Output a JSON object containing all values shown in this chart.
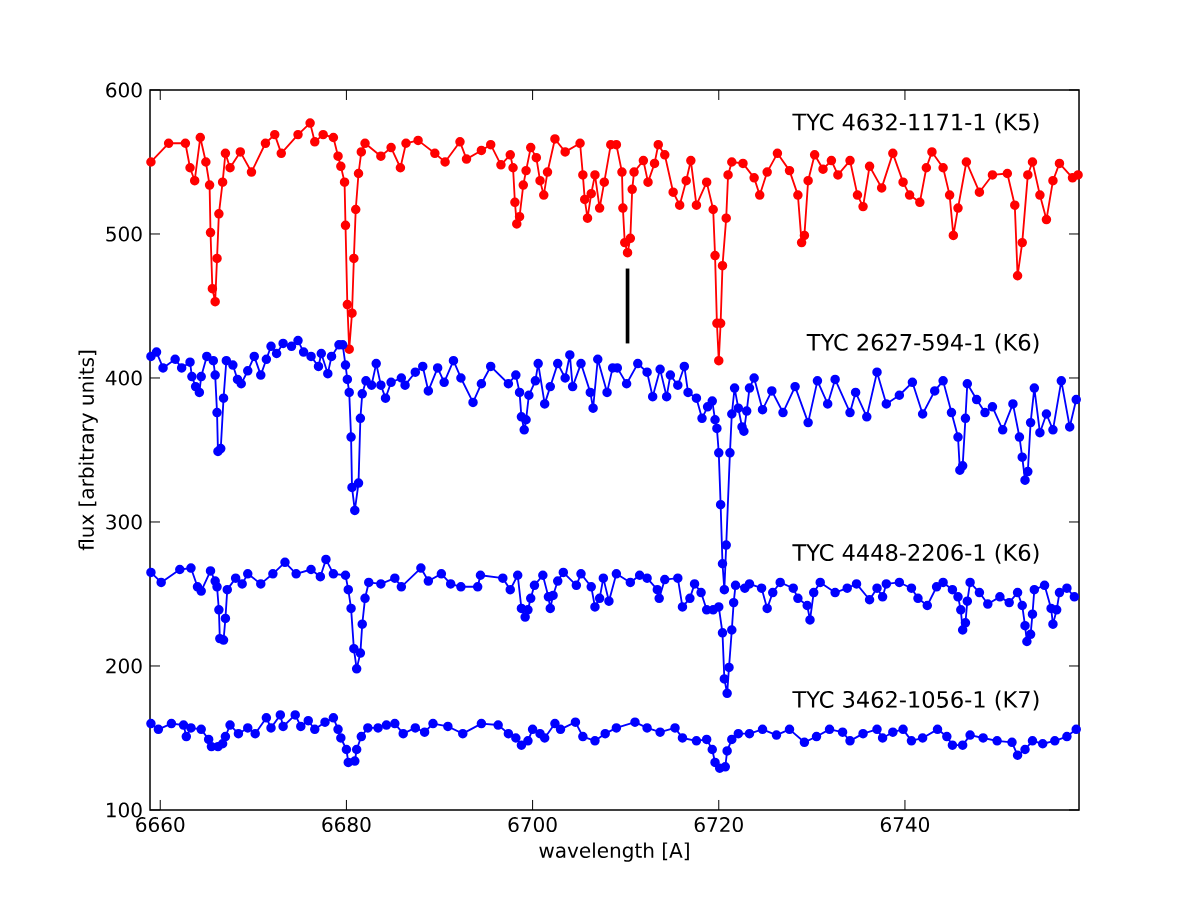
{
  "chart_data": {
    "type": "line",
    "xlabel": "wavelength [A]",
    "ylabel": "flux [arbitrary units]",
    "xlim": [
      6658.9,
      6758.7
    ],
    "ylim": [
      100,
      600
    ],
    "xticks": [
      6660,
      6680,
      6700,
      6720,
      6740
    ],
    "yticks": [
      100,
      200,
      300,
      400,
      500,
      600
    ],
    "marker": "circle",
    "line_style": "solid",
    "series": [
      {
        "name": "TYC 4632-1171-1 (K5)",
        "color": "#ff0000",
        "x": [
          6659.0,
          6660.9,
          6662.7,
          6663.2,
          6663.7,
          6664.3,
          6664.9,
          6665.3,
          6665.4,
          6665.6,
          6665.9,
          6666.1,
          6666.3,
          6666.7,
          6667.0,
          6667.5,
          6668.6,
          6669.8,
          6671.3,
          6672.3,
          6673.0,
          6674.8,
          6676.1,
          6676.6,
          6677.5,
          6678.6,
          6679.1,
          6679.4,
          6679.8,
          6679.9,
          6680.1,
          6680.3,
          6680.6,
          6680.8,
          6681.0,
          6681.3,
          6681.6,
          6682.0,
          6683.7,
          6684.8,
          6685.8,
          6686.4,
          6687.7,
          6689.5,
          6690.6,
          6692.2,
          6692.9,
          6694.5,
          6695.5,
          6696.6,
          6697.6,
          6697.9,
          6698.1,
          6698.3,
          6698.6,
          6699.0,
          6699.3,
          6699.8,
          6700.4,
          6700.8,
          6701.2,
          6701.6,
          6702.4,
          6703.5,
          6705.1,
          6705.4,
          6705.6,
          6705.9,
          6706.3,
          6706.7,
          6707.2,
          6707.7,
          6708.4,
          6709.0,
          6709.6,
          6709.7,
          6709.9,
          6710.2,
          6710.5,
          6710.7,
          6710.9,
          6711.9,
          6712.4,
          6713.1,
          6713.5,
          6714.2,
          6715.1,
          6715.8,
          6716.5,
          6717.0,
          6717.6,
          6718.7,
          6719.4,
          6719.6,
          6719.8,
          6720.0,
          6720.2,
          6720.4,
          6720.8,
          6721.0,
          6721.4,
          6722.6,
          6723.8,
          6724.4,
          6725.2,
          6726.3,
          6727.6,
          6728.5,
          6728.9,
          6729.2,
          6729.6,
          6730.3,
          6731.2,
          6732.1,
          6732.8,
          6734.1,
          6734.9,
          6735.5,
          6736.2,
          6737.5,
          6738.7,
          6739.8,
          6740.5,
          6741.6,
          6742.3,
          6742.9,
          6744.1,
          6744.8,
          6745.2,
          6745.7,
          6746.6,
          6748.0,
          6749.4,
          6751.0,
          6751.8,
          6752.1,
          6752.6,
          6753.2,
          6753.7,
          6754.5,
          6755.2,
          6755.9,
          6756.6,
          6758.0,
          6758.6
        ],
        "values": [
          550,
          563,
          563,
          546,
          537,
          567,
          550,
          534,
          501,
          462,
          453,
          483,
          514,
          536,
          556,
          546,
          557,
          543,
          563,
          569,
          556,
          569,
          577,
          564,
          569,
          567,
          554,
          547,
          536,
          506,
          451,
          420,
          445,
          483,
          517,
          542,
          557,
          563,
          554,
          560,
          546,
          563,
          565,
          556,
          550,
          564,
          552,
          558,
          562,
          548,
          555,
          546,
          522,
          507,
          512,
          534,
          544,
          560,
          553,
          537,
          527,
          543,
          566,
          557,
          563,
          541,
          524,
          511,
          528,
          541,
          518,
          536,
          562,
          562,
          543,
          518,
          494,
          487,
          497,
          531,
          543,
          551,
          536,
          549,
          562,
          555,
          529,
          520,
          537,
          551,
          520,
          536,
          517,
          485,
          438,
          412,
          438,
          478,
          511,
          541,
          550,
          549,
          539,
          527,
          543,
          556,
          544,
          527,
          494,
          499,
          537,
          555,
          545,
          551,
          541,
          551,
          527,
          519,
          547,
          532,
          556,
          536,
          527,
          522,
          546,
          557,
          546,
          527,
          499,
          518,
          550,
          529,
          541,
          542,
          520,
          471,
          494,
          541,
          550,
          527,
          510,
          537,
          549,
          539,
          541
        ]
      },
      {
        "name": "TYC 2627-594-1 (K6)",
        "color": "#0000ff",
        "x": [
          6659.0,
          6659.6,
          6660.3,
          6661.6,
          6662.3,
          6663.2,
          6663.4,
          6663.8,
          6664.2,
          6664.4,
          6665.0,
          6665.7,
          6665.9,
          6666.1,
          6666.2,
          6666.5,
          6666.8,
          6667.1,
          6667.8,
          6668.3,
          6668.7,
          6669.4,
          6670.1,
          6670.8,
          6671.4,
          6671.9,
          6672.5,
          6673.2,
          6674.1,
          6674.8,
          6675.4,
          6676.2,
          6677.0,
          6677.3,
          6678.0,
          6678.4,
          6679.2,
          6679.6,
          6679.9,
          6680.1,
          6680.3,
          6680.5,
          6680.6,
          6680.9,
          6681.3,
          6681.5,
          6681.7,
          6682.1,
          6682.7,
          6683.2,
          6683.7,
          6684.2,
          6684.8,
          6685.9,
          6686.3,
          6687.4,
          6688.2,
          6688.8,
          6689.8,
          6690.5,
          6691.5,
          6692.3,
          6693.6,
          6694.5,
          6695.5,
          6697.4,
          6698.2,
          6698.6,
          6698.8,
          6699.1,
          6699.3,
          6699.6,
          6700.3,
          6700.6,
          6701.3,
          6701.9,
          6702.7,
          6703.5,
          6704.0,
          6704.3,
          6705.2,
          6706.2,
          6706.5,
          6707.0,
          6708.0,
          6708.6,
          6709.1,
          6710.1,
          6711.3,
          6712.3,
          6712.9,
          6713.7,
          6714.4,
          6714.8,
          6715.6,
          6716.3,
          6716.7,
          6717.6,
          6718.2,
          6718.8,
          6719.3,
          6719.6,
          6719.8,
          6720.0,
          6720.2,
          6720.4,
          6720.6,
          6720.8,
          6721.2,
          6721.4,
          6721.7,
          6722.1,
          6722.5,
          6722.7,
          6723.0,
          6723.3,
          6723.8,
          6724.7,
          6725.7,
          6726.9,
          6728.2,
          6729.6,
          6730.6,
          6731.7,
          6732.5,
          6734.1,
          6734.7,
          6735.9,
          6737.0,
          6738.0,
          6739.4,
          6740.8,
          6741.9,
          6743.2,
          6744.1,
          6745.0,
          6745.7,
          6745.9,
          6746.2,
          6746.5,
          6746.7,
          6747.7,
          6748.6,
          6749.4,
          6750.5,
          6751.6,
          6752.3,
          6752.6,
          6752.9,
          6753.2,
          6753.5,
          6753.9,
          6754.5,
          6755.2,
          6755.9,
          6756.8,
          6757.7,
          6758.4
        ],
        "values": [
          415,
          418,
          407,
          413,
          407,
          411,
          401,
          394,
          390,
          401,
          415,
          412,
          402,
          376,
          349,
          351,
          386,
          412,
          409,
          399,
          396,
          405,
          415,
          402,
          413,
          422,
          417,
          424,
          422,
          426,
          418,
          415,
          408,
          417,
          403,
          415,
          423,
          423,
          409,
          399,
          390,
          359,
          324,
          308,
          327,
          372,
          389,
          398,
          395,
          410,
          395,
          386,
          397,
          400,
          395,
          404,
          408,
          391,
          407,
          397,
          412,
          400,
          383,
          396,
          408,
          396,
          402,
          390,
          373,
          364,
          371,
          388,
          398,
          410,
          382,
          394,
          410,
          400,
          416,
          394,
          410,
          390,
          379,
          413,
          390,
          407,
          407,
          396,
          410,
          404,
          387,
          406,
          387,
          402,
          395,
          408,
          390,
          386,
          372,
          380,
          384,
          371,
          365,
          348,
          312,
          271,
          253,
          284,
          348,
          375,
          393,
          379,
          366,
          363,
          377,
          393,
          400,
          378,
          391,
          376,
          394,
          369,
          398,
          382,
          399,
          376,
          390,
          373,
          404,
          382,
          388,
          397,
          375,
          391,
          398,
          376,
          359,
          336,
          339,
          372,
          396,
          385,
          376,
          380,
          364,
          382,
          359,
          345,
          329,
          335,
          369,
          393,
          362,
          375,
          364,
          398,
          366,
          385
        ]
      },
      {
        "name": "TYC 4448-2206-1 (K6)",
        "color": "#0000ff",
        "x": [
          6659.0,
          6660.1,
          6662.1,
          6663.3,
          6664.0,
          6664.4,
          6665.4,
          6665.9,
          6666.1,
          6666.3,
          6666.4,
          6666.8,
          6667.0,
          6667.2,
          6668.1,
          6668.8,
          6669.4,
          6670.8,
          6672.1,
          6673.4,
          6674.6,
          6676.2,
          6677.2,
          6677.8,
          6678.6,
          6679.9,
          6680.2,
          6680.5,
          6680.8,
          6681.1,
          6681.5,
          6681.7,
          6682.0,
          6682.4,
          6683.7,
          6685.2,
          6685.9,
          6688.0,
          6688.8,
          6690.2,
          6691.2,
          6692.3,
          6694.1,
          6694.4,
          6696.8,
          6697.6,
          6698.4,
          6698.8,
          6699.2,
          6699.5,
          6699.8,
          6700.2,
          6701.1,
          6701.7,
          6701.9,
          6702.2,
          6702.7,
          6703.3,
          6704.7,
          6705.2,
          6706.3,
          6706.7,
          6707.2,
          6707.6,
          6708.2,
          6709.0,
          6710.5,
          6711.5,
          6712.3,
          6713.4,
          6713.6,
          6714.2,
          6715.6,
          6716.1,
          6716.9,
          6717.4,
          6718.1,
          6718.7,
          6719.4,
          6720.0,
          6720.4,
          6720.6,
          6720.9,
          6721.1,
          6721.4,
          6721.6,
          6721.8,
          6722.8,
          6723.3,
          6724.6,
          6725.2,
          6725.8,
          6726.6,
          6728.0,
          6728.5,
          6729.5,
          6729.8,
          6730.2,
          6730.9,
          6732.5,
          6733.8,
          6734.8,
          6736.2,
          6737.0,
          6737.6,
          6738.0,
          6739.4,
          6740.7,
          6741.4,
          6742.4,
          6743.4,
          6744.1,
          6745.1,
          6745.7,
          6746.0,
          6746.2,
          6746.5,
          6746.7,
          6747.0,
          6748.0,
          6748.9,
          6750.2,
          6751.2,
          6752.1,
          6752.6,
          6752.9,
          6753.1,
          6753.5,
          6753.7,
          6753.9,
          6755.0,
          6755.7,
          6755.9,
          6756.3,
          6756.6,
          6757.4,
          6758.2
        ],
        "values": [
          265,
          258,
          267,
          268,
          255,
          252,
          266,
          259,
          255,
          239,
          219,
          218,
          233,
          253,
          261,
          257,
          264,
          257,
          264,
          272,
          264,
          267,
          262,
          274,
          264,
          263,
          253,
          240,
          212,
          198,
          209,
          229,
          247,
          258,
          257,
          261,
          255,
          268,
          259,
          264,
          257,
          255,
          255,
          263,
          261,
          253,
          263,
          240,
          234,
          239,
          247,
          256,
          263,
          248,
          240,
          249,
          259,
          265,
          256,
          264,
          255,
          241,
          247,
          261,
          245,
          264,
          258,
          263,
          261,
          253,
          247,
          260,
          261,
          241,
          247,
          257,
          251,
          239,
          239,
          241,
          223,
          191,
          181,
          199,
          225,
          244,
          256,
          254,
          257,
          254,
          240,
          251,
          258,
          254,
          247,
          242,
          232,
          251,
          258,
          251,
          254,
          257,
          246,
          254,
          248,
          257,
          258,
          254,
          247,
          242,
          255,
          258,
          253,
          248,
          239,
          225,
          230,
          245,
          258,
          251,
          243,
          248,
          244,
          251,
          242,
          228,
          217,
          222,
          236,
          253,
          256,
          240,
          229,
          239,
          251,
          254,
          248
        ]
      },
      {
        "name": "TYC 3462-1056-1 (K7)",
        "color": "#0000ff",
        "x": [
          6659.0,
          6659.8,
          6661.2,
          6662.5,
          6662.8,
          6663.3,
          6664.4,
          6665.2,
          6665.5,
          6666.2,
          6666.7,
          6667.0,
          6667.5,
          6668.4,
          6669.4,
          6670.2,
          6671.4,
          6671.9,
          6672.9,
          6673.2,
          6674.5,
          6675.1,
          6675.9,
          6676.6,
          6677.7,
          6678.6,
          6679.1,
          6679.4,
          6680.0,
          6680.2,
          6680.9,
          6681.1,
          6681.6,
          6682.3,
          6683.4,
          6684.3,
          6685.2,
          6686.1,
          6687.4,
          6688.4,
          6689.3,
          6690.9,
          6692.5,
          6694.5,
          6696.3,
          6697.4,
          6698.2,
          6698.8,
          6699.5,
          6700.0,
          6700.8,
          6701.3,
          6702.4,
          6703.0,
          6704.6,
          6705.4,
          6706.7,
          6707.8,
          6709.0,
          6711.0,
          6712.3,
          6713.7,
          6715.3,
          6716.1,
          6717.6,
          6718.7,
          6719.3,
          6719.6,
          6720.1,
          6720.7,
          6720.9,
          6721.4,
          6722.1,
          6723.3,
          6724.7,
          6726.2,
          6727.6,
          6729.2,
          6730.5,
          6731.9,
          6733.3,
          6734.1,
          6735.5,
          6737.0,
          6737.6,
          6738.7,
          6739.8,
          6740.7,
          6741.9,
          6743.5,
          6744.5,
          6745.1,
          6746.2,
          6747.0,
          6748.4,
          6749.9,
          6751.5,
          6752.1,
          6752.9,
          6753.7,
          6754.8,
          6756.1,
          6757.4,
          6758.4
        ],
        "values": [
          160,
          156,
          160,
          159,
          151,
          157,
          156,
          149,
          144,
          144,
          146,
          151,
          159,
          153,
          157,
          153,
          164,
          157,
          166,
          158,
          166,
          158,
          162,
          156,
          161,
          164,
          156,
          150,
          142,
          133,
          134,
          142,
          151,
          157,
          157,
          159,
          160,
          153,
          157,
          154,
          160,
          158,
          153,
          160,
          159,
          153,
          150,
          145,
          148,
          156,
          153,
          150,
          160,
          156,
          161,
          151,
          148,
          153,
          157,
          161,
          157,
          154,
          157,
          150,
          148,
          149,
          142,
          133,
          129,
          130,
          141,
          149,
          153,
          153,
          156,
          152,
          156,
          147,
          151,
          156,
          154,
          148,
          153,
          156,
          150,
          154,
          156,
          148,
          150,
          156,
          151,
          145,
          145,
          152,
          150,
          148,
          147,
          138,
          142,
          148,
          146,
          148,
          151,
          156
        ]
      },
      {
        "color": "#000000",
        "marker": "none",
        "x": [
          6710.2,
          6710.2
        ],
        "values": [
          476,
          424
        ]
      }
    ]
  }
}
